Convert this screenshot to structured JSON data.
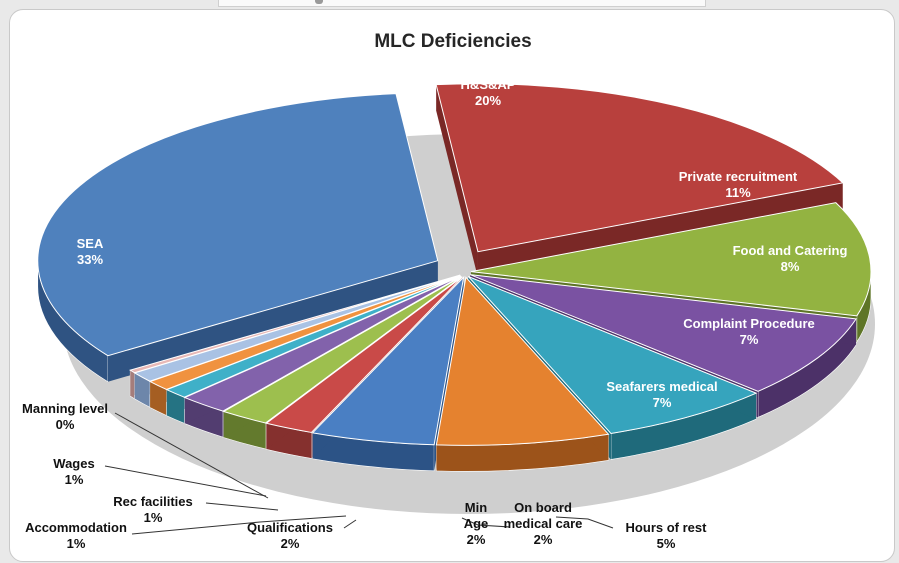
{
  "chart_data": {
    "type": "pie",
    "title": "MLC Deficiencies",
    "slices": [
      {
        "label": "H&S&AP",
        "value_label": "20%",
        "value": 20,
        "color": "#b8403d",
        "dark": "#7a2826"
      },
      {
        "label": "Private recruitment",
        "value_label": "11%",
        "value": 11,
        "color": "#93b341",
        "dark": "#5e7527"
      },
      {
        "label": "Food and Catering",
        "value_label": "8%",
        "value": 8,
        "color": "#7a52a2",
        "dark": "#4c3168"
      },
      {
        "label": "Complaint Procedure",
        "value_label": "7%",
        "value": 7,
        "color": "#36a4bd",
        "dark": "#1f6a7b"
      },
      {
        "label": "Seafarers medical",
        "value_label": "7%",
        "value": 7,
        "color": "#e5822f",
        "dark": "#9c531a"
      },
      {
        "label": "Hours of rest",
        "value_label": "5%",
        "value": 5,
        "color": "#4a7fc3",
        "dark": "#2c5386"
      },
      {
        "label": "On board medical care",
        "value_label": "2%",
        "value": 2,
        "color": "#c94a48",
        "dark": "#85302e"
      },
      {
        "label": "Min Age",
        "value_label": "2%",
        "value": 2,
        "color": "#9dbf4e",
        "dark": "#637a2d"
      },
      {
        "label": "Qualifications",
        "value_label": "2%",
        "value": 2,
        "color": "#8262ab",
        "dark": "#523d70"
      },
      {
        "label": "Accommodation",
        "value_label": "1%",
        "value": 1,
        "color": "#3fb0c8",
        "dark": "#257383"
      },
      {
        "label": "Rec facilities",
        "value_label": "1%",
        "value": 1,
        "color": "#f0923f",
        "dark": "#a55e22"
      },
      {
        "label": "Wages",
        "value_label": "1%",
        "value": 1,
        "color": "#a9c2e4",
        "dark": "#6d86aa"
      },
      {
        "label": "Manning level",
        "value_label": "0%",
        "value": 0.3,
        "color": "#e8b8b6",
        "dark": "#a57d7b"
      },
      {
        "label": "SEA",
        "value_label": "33%",
        "value": 33,
        "color": "#4f81bd",
        "dark": "#2f5382"
      }
    ]
  }
}
